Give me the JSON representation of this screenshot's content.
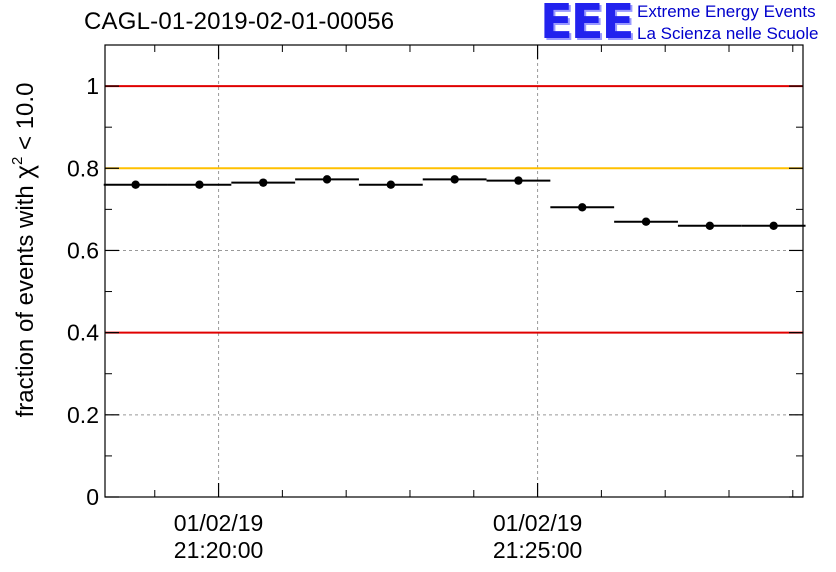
{
  "header": {
    "title": "CAGL-01-2019-02-01-00056",
    "logo_mark": "EEE",
    "logo_line1": "Extreme Energy Events",
    "logo_line2": "La Scienza nelle Scuole"
  },
  "colors": {
    "red_line": "#e00000",
    "yellow_line": "#ffc000",
    "logo_blue": "#0000cc",
    "grid": "#999999"
  },
  "chart_data": {
    "type": "scatter",
    "title": "CAGL-01-2019-02-01-00056",
    "xlabel": "",
    "ylabel_main": "fraction of events with ",
    "ylabel_symbol": "χ",
    "ylabel_sup": "2",
    "ylabel_tail": " < 10.0",
    "x_unit": "minutes since 01/02/19 21:20:00",
    "xlim": [
      -1.78,
      9.16
    ],
    "ylim": [
      0,
      1.1
    ],
    "yticks": [
      0,
      0.2,
      0.4,
      0.6,
      0.8,
      1
    ],
    "ytick_labels": [
      "0",
      "0.2",
      "0.4",
      "0.6",
      "0.8",
      "1"
    ],
    "xticks_major": [
      0,
      5
    ],
    "xtick_labels": [
      [
        "01/02/19",
        "21:20:00"
      ],
      [
        "01/02/19",
        "21:25:00"
      ]
    ],
    "xticks_minor": [
      -1,
      1,
      2,
      3,
      4,
      6,
      7,
      8,
      9
    ],
    "grid": true,
    "reference_lines": [
      {
        "y": 1.0,
        "color": "#e00000"
      },
      {
        "y": 0.8,
        "color": "#ffc000"
      },
      {
        "y": 0.4,
        "color": "#e00000"
      }
    ],
    "bin_width": 1.0,
    "points": [
      {
        "x": -1.3,
        "y": 0.76
      },
      {
        "x": -0.3,
        "y": 0.76
      },
      {
        "x": 0.7,
        "y": 0.765
      },
      {
        "x": 1.7,
        "y": 0.773
      },
      {
        "x": 2.7,
        "y": 0.76
      },
      {
        "x": 3.7,
        "y": 0.773
      },
      {
        "x": 4.7,
        "y": 0.77
      },
      {
        "x": 5.7,
        "y": 0.705
      },
      {
        "x": 6.7,
        "y": 0.67
      },
      {
        "x": 7.7,
        "y": 0.66
      },
      {
        "x": 8.7,
        "y": 0.66
      }
    ]
  }
}
